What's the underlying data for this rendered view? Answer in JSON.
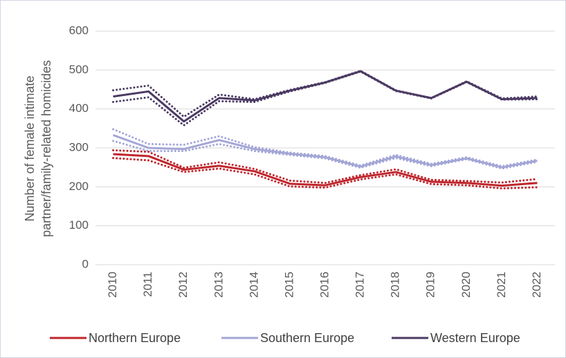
{
  "chart_data": {
    "type": "line",
    "y_label": [
      "Number of female intimate",
      "partner/family-related homicides"
    ],
    "categories": [
      "2010",
      "2011",
      "2012",
      "2013",
      "2014",
      "2015",
      "2016",
      "2017",
      "2018",
      "2019",
      "2020",
      "2021",
      "2022"
    ],
    "ylim": [
      0,
      600
    ],
    "yticks": [
      0,
      100,
      200,
      300,
      400,
      500,
      600
    ],
    "grid": true,
    "legend": "bottom",
    "series": [
      {
        "name": "Northern Europe",
        "color": "#c0262d",
        "values": [
          284,
          279,
          244,
          254,
          240,
          208,
          204,
          225,
          238,
          213,
          210,
          203,
          210
        ],
        "upper": [
          294,
          290,
          249,
          263,
          246,
          216,
          210,
          230,
          245,
          218,
          215,
          211,
          220
        ],
        "lower": [
          274,
          268,
          238,
          247,
          232,
          201,
          198,
          219,
          232,
          207,
          204,
          196,
          199
        ]
      },
      {
        "name": "Southern Europe",
        "color": "#a3a6d6",
        "values": [
          333,
          300,
          297,
          320,
          297,
          285,
          276,
          252,
          278,
          256,
          273,
          250,
          267
        ],
        "upper": [
          348,
          310,
          308,
          330,
          302,
          288,
          279,
          255,
          282,
          259,
          276,
          253,
          270
        ],
        "lower": [
          318,
          292,
          292,
          310,
          292,
          282,
          273,
          249,
          274,
          253,
          271,
          247,
          264
        ]
      },
      {
        "name": "Western Europe",
        "color": "#4b3a63",
        "values": [
          432,
          445,
          368,
          428,
          422,
          447,
          468,
          497,
          447,
          428,
          470,
          425,
          428
        ],
        "upper": [
          448,
          460,
          380,
          437,
          425,
          449,
          469,
          498,
          448,
          428,
          471,
          427,
          432
        ],
        "lower": [
          418,
          430,
          358,
          420,
          418,
          445,
          467,
          496,
          446,
          427,
          469,
          424,
          425
        ]
      }
    ]
  }
}
